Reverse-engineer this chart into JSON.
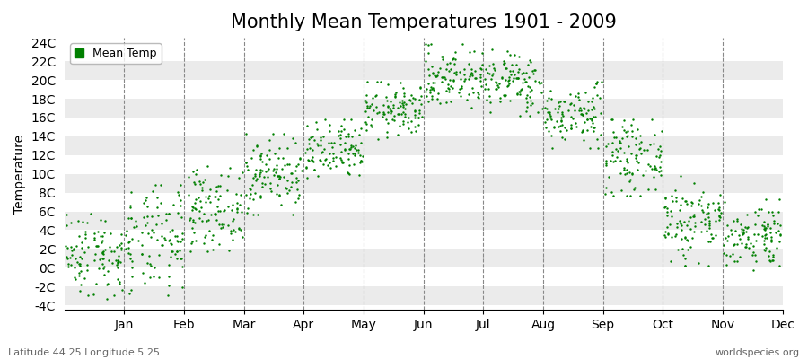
{
  "title": "Monthly Mean Temperatures 1901 - 2009",
  "ylabel": "Temperature",
  "xlabel_labels": [
    "Jan",
    "Feb",
    "Mar",
    "Apr",
    "May",
    "Jun",
    "Jul",
    "Aug",
    "Sep",
    "Oct",
    "Nov",
    "Dec"
  ],
  "ytick_labels": [
    "-4C",
    "-2C",
    "0C",
    "2C",
    "4C",
    "6C",
    "8C",
    "10C",
    "12C",
    "14C",
    "16C",
    "18C",
    "20C",
    "22C",
    "24C"
  ],
  "ytick_values": [
    -4,
    -2,
    0,
    2,
    4,
    6,
    8,
    10,
    12,
    14,
    16,
    18,
    20,
    22,
    24
  ],
  "ylim": [
    -4.5,
    24.5
  ],
  "dot_color": "#008000",
  "dot_size": 3,
  "background_color": "#ffffff",
  "band_color": "#ebebeb",
  "legend_label": "Mean Temp",
  "footer_left": "Latitude 44.25 Longitude 5.25",
  "footer_right": "worldspecies.org",
  "title_fontsize": 15,
  "axis_fontsize": 10,
  "n_years": 109,
  "random_seed": 42,
  "temp_ranges": [
    [
      -3.0,
      6.0
    ],
    [
      -3.0,
      8.5
    ],
    [
      2.0,
      10.5
    ],
    [
      6.0,
      14.0
    ],
    [
      9.0,
      15.5
    ],
    [
      14.0,
      19.5
    ],
    [
      17.0,
      23.5
    ],
    [
      16.5,
      23.0
    ],
    [
      13.0,
      19.5
    ],
    [
      8.0,
      15.5
    ],
    [
      0.5,
      9.5
    ],
    [
      0.0,
      7.0
    ]
  ]
}
